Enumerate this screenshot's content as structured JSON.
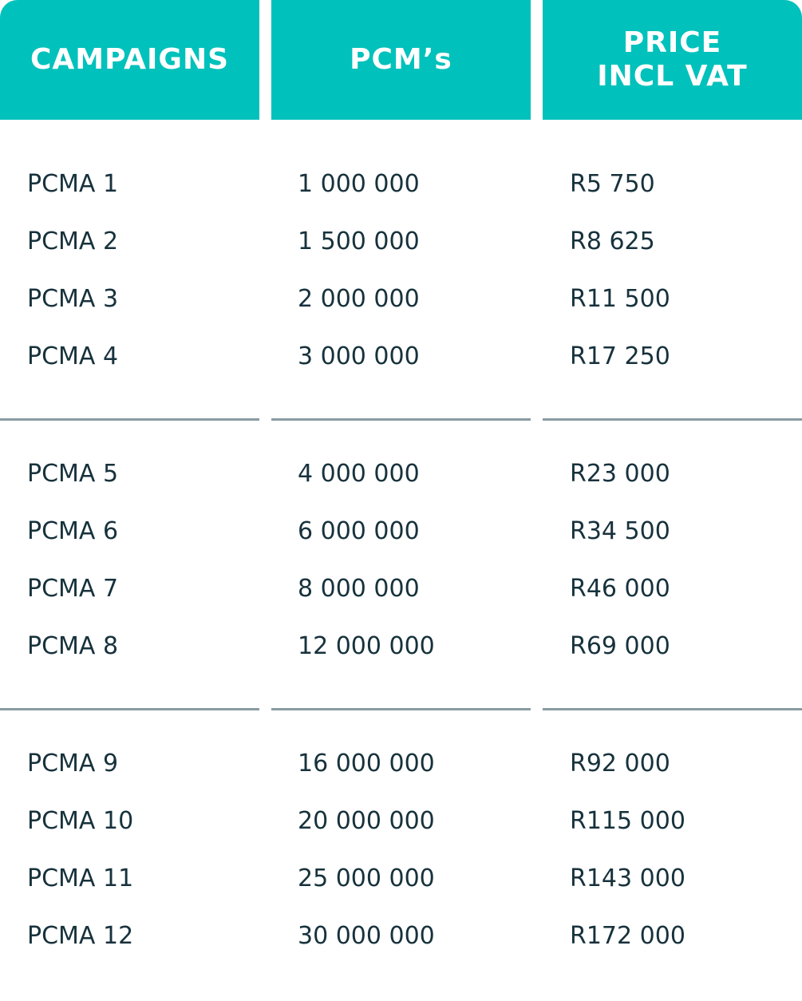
{
  "header": {
    "campaigns": "CAMPAIGNS",
    "pcms": "PCM’s",
    "price_line1": "PRICE",
    "price_line2": "INCL VAT"
  },
  "colors": {
    "header_bg": "#00c1bb",
    "header_text": "#ffffff",
    "body_text": "#17323c",
    "divider": "#8a9ca2"
  },
  "groups": [
    {
      "rows": [
        {
          "campaign": "PCMA 1",
          "pcms": "1 000 000",
          "price": "R5 750"
        },
        {
          "campaign": "PCMA 2",
          "pcms": "1 500 000",
          "price": "R8 625"
        },
        {
          "campaign": "PCMA 3",
          "pcms": "2 000 000",
          "price": "R11 500"
        },
        {
          "campaign": "PCMA 4",
          "pcms": "3 000 000",
          "price": "R17 250"
        }
      ]
    },
    {
      "rows": [
        {
          "campaign": "PCMA 5",
          "pcms": "4 000 000",
          "price": "R23 000"
        },
        {
          "campaign": "PCMA 6",
          "pcms": "6 000 000",
          "price": "R34 500"
        },
        {
          "campaign": "PCMA 7",
          "pcms": "8 000 000",
          "price": "R46 000"
        },
        {
          "campaign": "PCMA 8",
          "pcms": "12 000 000",
          "price": "R69 000"
        }
      ]
    },
    {
      "rows": [
        {
          "campaign": "PCMA 9",
          "pcms": "16 000 000",
          "price": "R92 000"
        },
        {
          "campaign": "PCMA 10",
          "pcms": "20 000 000",
          "price": "R115 000"
        },
        {
          "campaign": "PCMA 11",
          "pcms": "25 000 000",
          "price": "R143 000"
        },
        {
          "campaign": "PCMA 12",
          "pcms": "30 000 000",
          "price": "R172 000"
        }
      ]
    }
  ]
}
